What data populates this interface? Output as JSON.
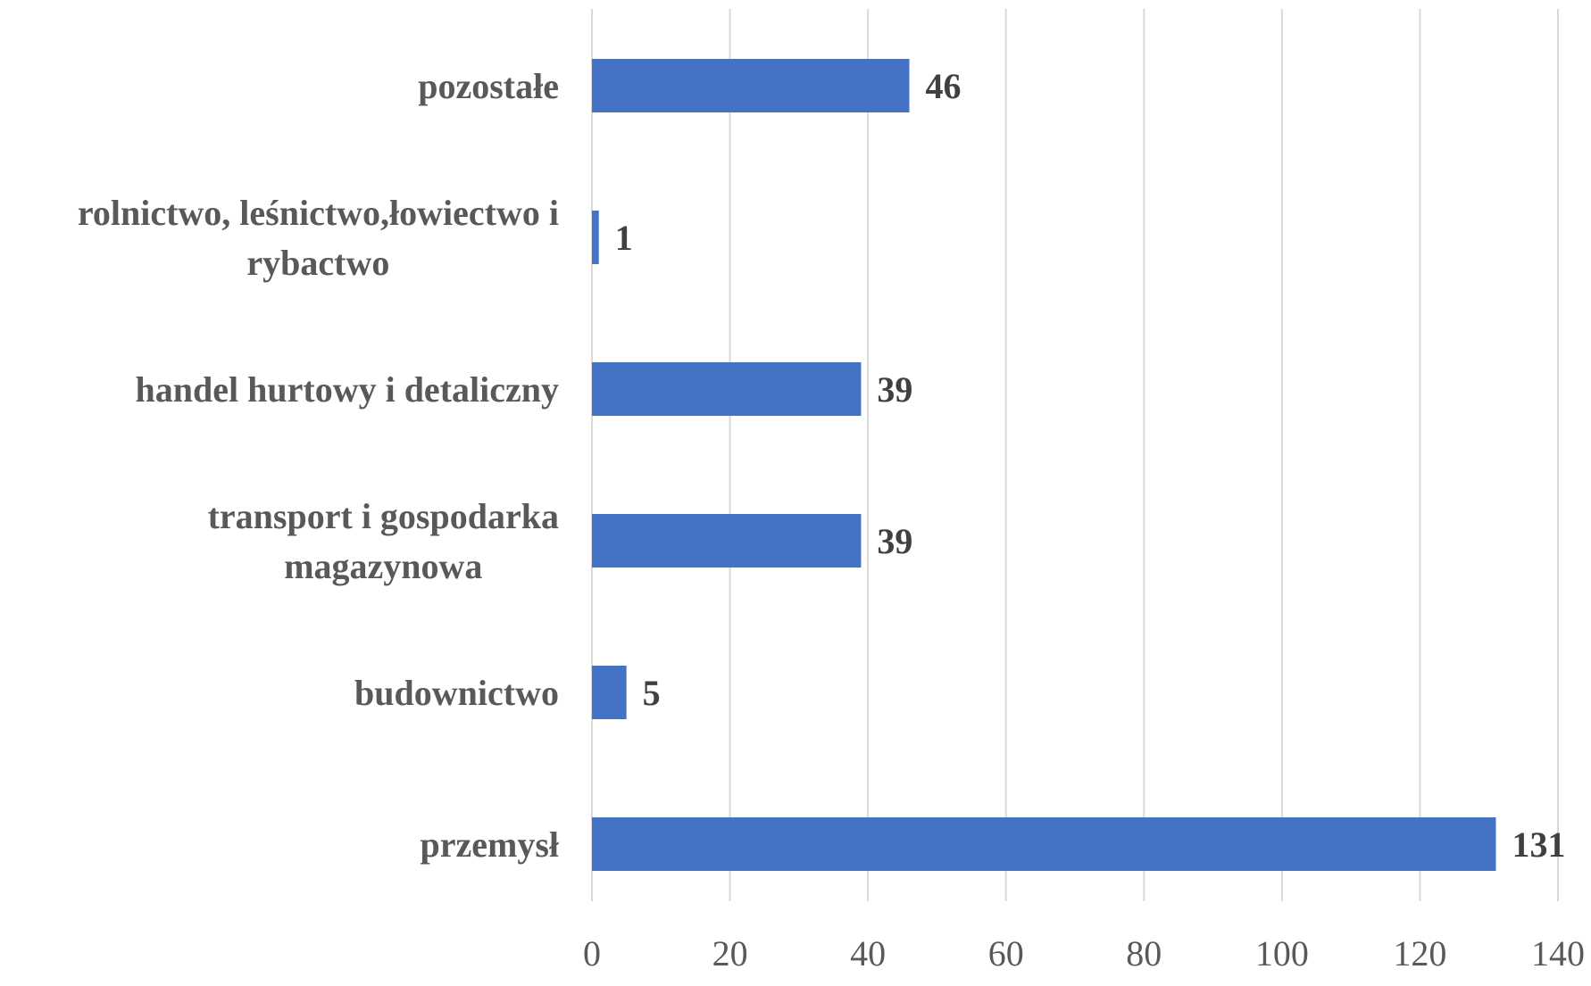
{
  "chart_data": {
    "type": "bar",
    "orientation": "horizontal",
    "categories": [
      "pozostałe",
      "rolnictwo, leśnictwo,łowiectwo i rybactwo",
      "handel hurtowy i detaliczny",
      "transport i gospodarka magazynowa",
      "budownictwo",
      "przemysł"
    ],
    "category_lines": [
      [
        "pozostałe"
      ],
      [
        "rolnictwo, leśnictwo,łowiectwo i",
        "rybactwo"
      ],
      [
        "handel hurtowy i detaliczny"
      ],
      [
        "transport i gospodarka",
        "magazynowa"
      ],
      [
        "budownictwo"
      ],
      [
        "przemysł"
      ]
    ],
    "values": [
      46,
      1,
      39,
      39,
      5,
      131
    ],
    "data_labels": [
      "46",
      "1",
      "39",
      "39",
      "5",
      "131"
    ],
    "xlim": [
      0,
      140
    ],
    "xticks": [
      0,
      20,
      40,
      60,
      80,
      100,
      120,
      140
    ],
    "xtick_labels": [
      "0",
      "20",
      "40",
      "60",
      "80",
      "100",
      "120",
      "140"
    ],
    "grid": true,
    "legend": "none",
    "bar_color": "#4472c4",
    "title": "",
    "xlabel": "",
    "ylabel": ""
  }
}
